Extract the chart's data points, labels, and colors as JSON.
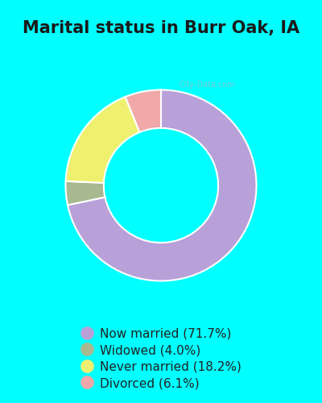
{
  "title": "Marital status in Burr Oak, IA",
  "title_fontsize": 15,
  "background_color": "#00FFFF",
  "chart_bg_color": "#cceedd",
  "slices": [
    71.7,
    4.0,
    18.2,
    6.1
  ],
  "labels": [
    "Now married (71.7%)",
    "Widowed (4.0%)",
    "Never married (18.2%)",
    "Divorced (6.1%)"
  ],
  "colors": [
    "#b8a0d8",
    "#a8b890",
    "#f0f070",
    "#f0a8a8"
  ],
  "donut_width": 0.4,
  "startangle": 90,
  "legend_fontsize": 11,
  "watermark": "City-Data.com",
  "legend_dot_size": 12
}
